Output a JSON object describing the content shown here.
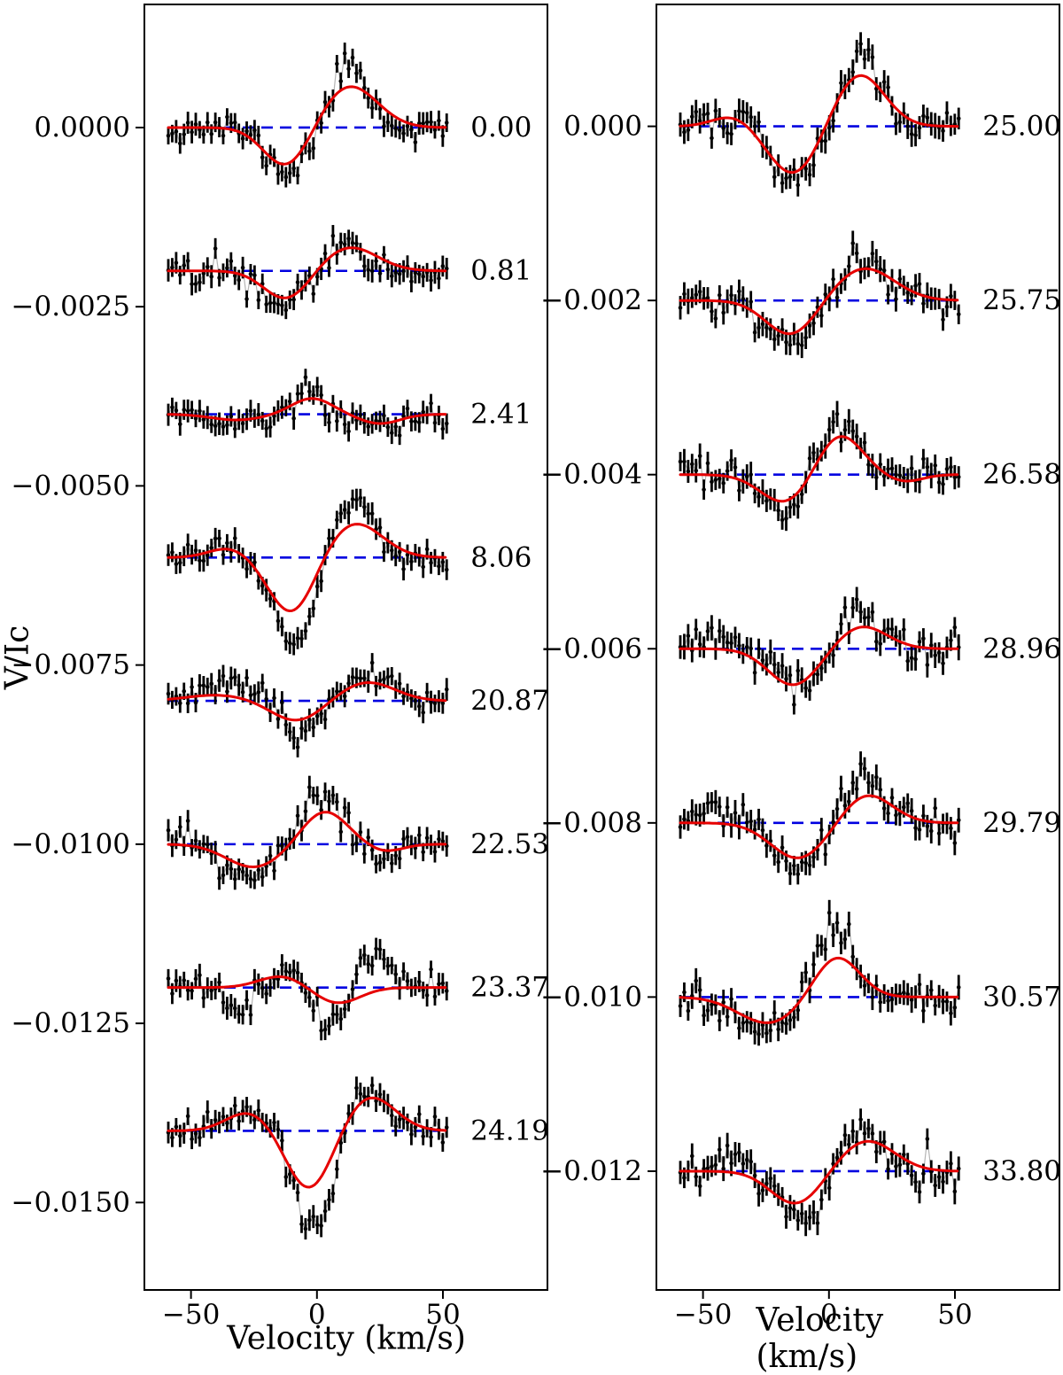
{
  "chart_data": {
    "type": "line",
    "title": "",
    "xlabel": "Velocity (km/s)",
    "ylabel": "V/Ic",
    "xlim": [
      -68.5,
      91.5
    ],
    "x_ticks": [
      -50,
      0,
      50
    ],
    "x_tick_labels": [
      "−50",
      "0",
      "50"
    ],
    "velocity_range": [
      -59,
      51.5
    ],
    "points_per_profile": 72,
    "colors": {
      "fit_line": "#e60000",
      "zero_line": "#0000e0",
      "data_points": "#000000",
      "connector": "#b4b4b4",
      "frame": "#000000"
    },
    "panels": [
      {
        "side": "left",
        "ylim": [
          -0.01622,
          0.001718
        ],
        "y_ticks": [
          0.0,
          -0.0025,
          -0.005,
          -0.0075,
          -0.01,
          -0.0125,
          -0.015
        ],
        "y_tick_labels": [
          "0.0000",
          "−0.0025",
          "−0.0050",
          "−0.0075",
          "−0.0100",
          "−0.0125",
          "−0.0150"
        ],
        "noise_sigma": 0.0001,
        "err_half": 0.00014,
        "rows": [
          {
            "label": "0.00",
            "offset": 0.0,
            "seed": 11,
            "fit": [
              [
                -0.00055,
                -12,
                9
              ],
              [
                0.00058,
                13,
                11
              ]
            ],
            "data": [
              [
                -0.00062,
                -12,
                8
              ],
              [
                0.0009,
                13,
                7
              ]
            ]
          },
          {
            "label": "0.81",
            "offset": -0.002,
            "seed": 22,
            "fit": [
              [
                -0.0004,
                -12,
                9
              ],
              [
                0.00033,
                13,
                11
              ]
            ],
            "data": [
              [
                -0.00046,
                -13,
                8
              ],
              [
                0.00045,
                12,
                7
              ]
            ]
          },
          {
            "label": "2.41",
            "offset": -0.004,
            "seed": 33,
            "fit": [
              [
                0.00022,
                -2,
                8
              ],
              [
                -0.00013,
                25,
                8
              ],
              [
                -8e-05,
                -32,
                10
              ]
            ],
            "data": [
              [
                0.00028,
                -3,
                6
              ],
              [
                -0.0002,
                25,
                7
              ],
              [
                -0.00015,
                -32,
                8
              ]
            ]
          },
          {
            "label": "8.06",
            "offset": -0.006,
            "seed": 44,
            "fit": [
              [
                0.00013,
                -35,
                8
              ],
              [
                -0.00078,
                -10,
                9
              ],
              [
                0.00048,
                15,
                11
              ]
            ],
            "data": [
              [
                0.00015,
                -35,
                8
              ],
              [
                -0.00125,
                -9,
                8
              ],
              [
                0.0008,
                14,
                8
              ]
            ]
          },
          {
            "label": "20.87",
            "offset": -0.008,
            "seed": 55,
            "fit": [
              [
                8e-05,
                -40,
                12
              ],
              [
                -0.00028,
                -8,
                10
              ],
              [
                0.00026,
                20,
                11
              ]
            ],
            "data": [
              [
                0.0002,
                -30,
                12
              ],
              [
                -0.00045,
                -7,
                8
              ],
              [
                0.00032,
                18,
                9
              ]
            ]
          },
          {
            "label": "22.53",
            "offset": -0.01,
            "seed": 66,
            "fit": [
              [
                -0.00032,
                -25,
                11
              ],
              [
                0.00046,
                3,
                9
              ],
              [
                -0.0001,
                27,
                7
              ]
            ],
            "data": [
              [
                -0.00048,
                -28,
                9
              ],
              [
                0.00068,
                2,
                8
              ],
              [
                -0.00015,
                25,
                6
              ]
            ]
          },
          {
            "label": "23.37",
            "offset": -0.012,
            "seed": 77,
            "fit": [
              [
                0.00016,
                -14,
                9
              ],
              [
                -0.00022,
                8,
                9
              ]
            ],
            "data": [
              [
                -0.0003,
                -30,
                6
              ],
              [
                0.0004,
                -10,
                6
              ],
              [
                -0.0005,
                5,
                7
              ],
              [
                0.00045,
                22,
                6
              ]
            ]
          },
          {
            "label": "24.19",
            "offset": -0.014,
            "seed": 88,
            "fit": [
              [
                0.00026,
                -27,
                9
              ],
              [
                -0.00082,
                -3,
                9
              ],
              [
                0.00048,
                21,
                10
              ]
            ],
            "data": [
              [
                0.00028,
                -27,
                9
              ],
              [
                -0.0014,
                -1,
                8
              ],
              [
                0.0007,
                18,
                8
              ]
            ]
          }
        ]
      },
      {
        "side": "right",
        "ylim": [
          -0.013364,
          0.0014
        ],
        "y_ticks": [
          0.0,
          -0.002,
          -0.004,
          -0.006,
          -0.008,
          -0.01,
          -0.012
        ],
        "y_tick_labels": [
          "0.000",
          "−0.002",
          "−0.004",
          "−0.006",
          "−0.008",
          "−0.010",
          "−0.012"
        ],
        "noise_sigma": 0.0001,
        "err_half": 0.00013,
        "rows": [
          {
            "label": "25.00",
            "offset": 0.0,
            "seed": 101,
            "fit": [
              [
                0.00012,
                -38,
                8
              ],
              [
                -0.00055,
                -14,
                10
              ],
              [
                0.0006,
                12,
                10
              ]
            ],
            "data": [
              [
                0.00015,
                -38,
                7
              ],
              [
                -0.0006,
                -14,
                9
              ],
              [
                0.00085,
                13,
                7
              ]
            ]
          },
          {
            "label": "25.75",
            "offset": -0.002,
            "seed": 102,
            "fit": [
              [
                -0.0004,
                -15,
                10
              ],
              [
                0.00037,
                14,
                12
              ]
            ],
            "data": [
              [
                -0.00048,
                -16,
                9
              ],
              [
                0.00045,
                14,
                9
              ]
            ]
          },
          {
            "label": "26.58",
            "offset": -0.004,
            "seed": 103,
            "fit": [
              [
                -0.00033,
                -17,
                10
              ],
              [
                0.00047,
                4,
                9
              ],
              [
                -8e-05,
                30,
                7
              ]
            ],
            "data": [
              [
                -0.00042,
                -18,
                9
              ],
              [
                0.00062,
                3,
                8
              ]
            ]
          },
          {
            "label": "28.96",
            "offset": -0.006,
            "seed": 104,
            "fit": [
              [
                -0.00042,
                -14,
                10
              ],
              [
                0.00026,
                13,
                10
              ]
            ],
            "data": [
              [
                0.00012,
                -45,
                6
              ],
              [
                -0.00045,
                -13,
                9
              ],
              [
                0.00042,
                11,
                7
              ]
            ]
          },
          {
            "label": "29.79",
            "offset": -0.008,
            "seed": 105,
            "fit": [
              [
                -0.00041,
                -12,
                11
              ],
              [
                0.00033,
                15,
                10
              ]
            ],
            "data": [
              [
                0.0002,
                -45,
                7
              ],
              [
                -0.00048,
                -12,
                10
              ],
              [
                0.00052,
                15,
                8
              ]
            ]
          },
          {
            "label": "30.57",
            "offset": -0.01,
            "seed": 106,
            "fit": [
              [
                -0.0003,
                -24,
                12
              ],
              [
                0.00047,
                3,
                9
              ]
            ],
            "data": [
              [
                -0.00035,
                -25,
                11
              ],
              [
                0.00075,
                2,
                8
              ]
            ]
          },
          {
            "label": "33.80",
            "offset": -0.012,
            "seed": 107,
            "fit": [
              [
                -0.00038,
                -13,
                10
              ],
              [
                0.00035,
                15,
                11
              ]
            ],
            "data": [
              [
                0.0002,
                -40,
                7
              ],
              [
                -0.00052,
                -10,
                9
              ],
              [
                0.0005,
                13,
                8
              ]
            ]
          }
        ]
      }
    ]
  }
}
